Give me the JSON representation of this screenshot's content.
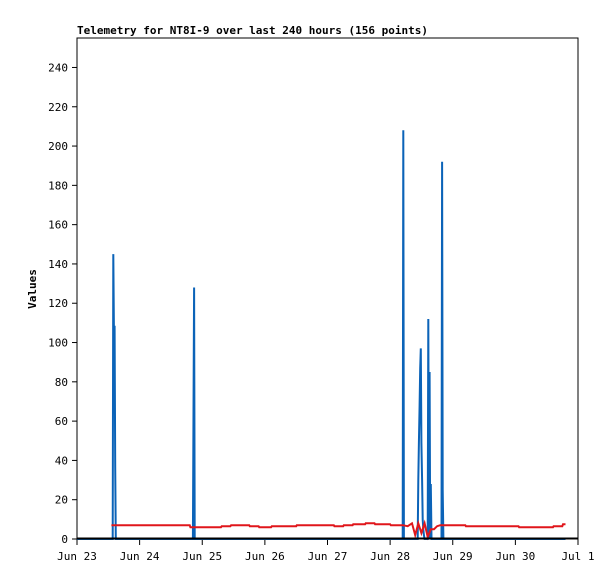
{
  "chart_data": {
    "type": "line",
    "title": "Telemetry for NT8I-9 over last 240 hours (156 points)",
    "xlabel": "",
    "ylabel": "Values",
    "xlim": [
      "Jun 23",
      "Jul 1"
    ],
    "ylim": [
      0,
      255
    ],
    "x_ticks": [
      "Jun 23",
      "Jun 24",
      "Jun 25",
      "Jun 26",
      "Jun 27",
      "Jun 28",
      "Jun 29",
      "Jun 30",
      "Jul 1"
    ],
    "y_ticks": [
      0,
      20,
      40,
      60,
      80,
      100,
      120,
      140,
      160,
      180,
      200,
      220,
      240
    ],
    "grid": false,
    "legend": "none",
    "series": [
      {
        "color": "#0b63b8",
        "x_unit": "days since Jun 23 00:00",
        "x": [
          0.0,
          0.57,
          0.58,
          0.59,
          0.6,
          0.61,
          0.62,
          0.63,
          0.64,
          0.65,
          1.85,
          1.86,
          1.87,
          1.88,
          1.89,
          1.9,
          5.2,
          5.21,
          5.22,
          5.23,
          5.24,
          5.44,
          5.45,
          5.46,
          5.47,
          5.48,
          5.49,
          5.5,
          5.51,
          5.52,
          5.53,
          5.54,
          5.55,
          5.58,
          5.6,
          5.61,
          5.62,
          5.63,
          5.64,
          5.65,
          5.66,
          5.67,
          5.68,
          5.69,
          5.7,
          5.71,
          5.72,
          5.73,
          5.74,
          5.82,
          5.83,
          5.84,
          5.85,
          5.86,
          5.87,
          5.88,
          7.8
        ],
        "y": [
          0,
          0,
          145,
          108,
          108,
          37,
          0,
          0,
          0,
          0,
          0,
          65,
          128,
          0,
          0,
          0,
          0,
          208,
          0,
          0,
          0,
          0,
          30,
          49,
          68,
          87,
          97,
          49,
          30,
          10,
          5,
          2,
          0,
          0,
          0,
          112,
          0,
          85,
          0,
          28,
          0,
          0,
          0,
          0,
          0,
          0,
          0,
          0,
          0,
          0,
          192,
          25,
          0,
          0,
          0,
          0,
          0
        ]
      },
      {
        "color": "#e0161b",
        "x_unit": "days since Jun 23 00:00",
        "x": [
          0.55,
          1.8,
          1.81,
          2.3,
          2.31,
          2.45,
          2.46,
          2.75,
          2.76,
          2.9,
          2.91,
          3.1,
          3.11,
          3.5,
          3.51,
          4.1,
          4.11,
          4.25,
          4.26,
          4.4,
          4.41,
          4.6,
          4.61,
          4.75,
          4.76,
          5.0,
          5.01,
          5.2,
          5.28,
          5.35,
          5.4,
          5.45,
          5.5,
          5.55,
          5.6,
          5.65,
          5.7,
          5.75,
          5.8,
          5.85,
          5.9,
          6.2,
          6.21,
          6.6,
          6.61,
          7.05,
          7.06,
          7.6,
          7.61,
          7.75,
          7.76,
          7.8
        ],
        "y": [
          7,
          7,
          6,
          6,
          6.5,
          6.5,
          7,
          7,
          6.5,
          6.5,
          6,
          6,
          6.5,
          6.5,
          7,
          7,
          6.5,
          6.5,
          7,
          7,
          7.5,
          7.5,
          8,
          8,
          7.5,
          7.5,
          7,
          7,
          6.5,
          8,
          2,
          8,
          3,
          8,
          1,
          5,
          5,
          6.5,
          7,
          7,
          7,
          7,
          6.5,
          6.5,
          6.5,
          6.5,
          6,
          6,
          6.5,
          6.5,
          7.5,
          7.5
        ]
      }
    ]
  }
}
